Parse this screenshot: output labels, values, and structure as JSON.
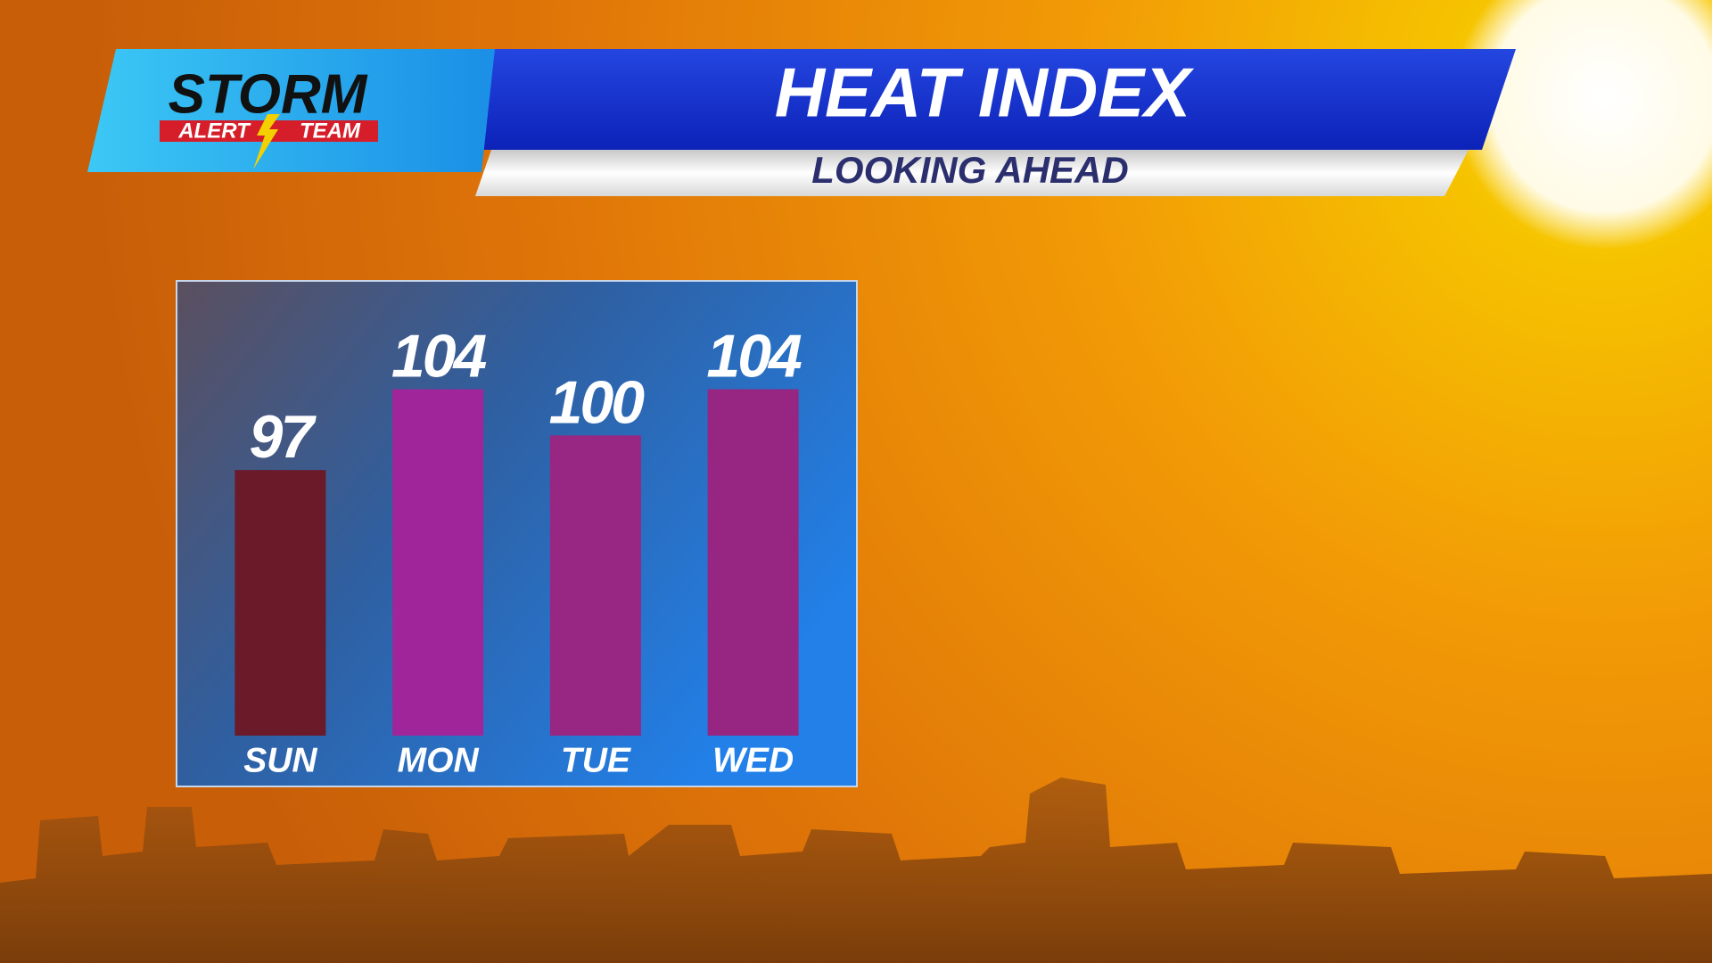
{
  "logo": {
    "top": "STORM",
    "left": "ALERT",
    "right": "TEAM"
  },
  "chart_data": {
    "type": "bar",
    "title": "HEAT INDEX",
    "subtitle": "LOOKING AHEAD",
    "categories": [
      "SUN",
      "MON",
      "TUE",
      "WED"
    ],
    "values": [
      97,
      104,
      100,
      104
    ],
    "colors": [
      "#6b1a2a",
      "#a0259a",
      "#982683",
      "#962681"
    ],
    "ylim": [
      74,
      113
    ]
  }
}
